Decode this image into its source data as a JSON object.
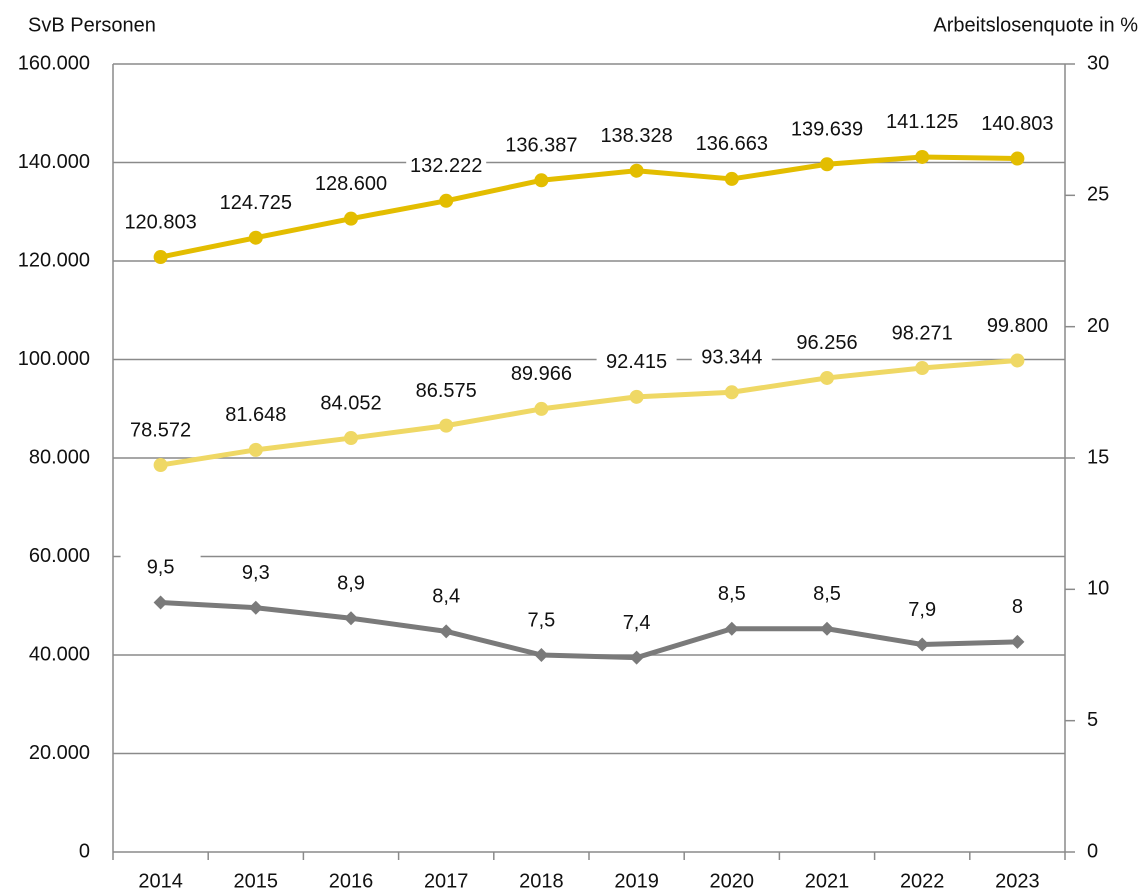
{
  "chart_data": {
    "type": "line",
    "y_label": "SvB Personen",
    "y2_label": "Arbeitslosenquote in %",
    "categories": [
      "2014",
      "2015",
      "2016",
      "2017",
      "2018",
      "2019",
      "2020",
      "2021",
      "2022",
      "2023"
    ],
    "series": [
      {
        "color": "#e3bd00",
        "marker": "circle",
        "values": [
          120803,
          124725,
          128600,
          132222,
          136387,
          138328,
          136663,
          139639,
          141125,
          140803
        ],
        "value_labels": [
          "120.803",
          "124.725",
          "128.600",
          "132.222",
          "136.387",
          "138.328",
          "136.663",
          "139.639",
          "141.125",
          "140.803"
        ]
      },
      {
        "color": "#efd865",
        "marker": "circle",
        "values": [
          78572,
          81648,
          84052,
          86575,
          89966,
          92415,
          93344,
          96256,
          98271,
          99800
        ],
        "value_labels": [
          "78.572",
          "81.648",
          "84.052",
          "86.575",
          "89.966",
          "92.415",
          "93.344",
          "96.256",
          "98.271",
          "99.800"
        ]
      },
      {
        "color": "#7a7a7a",
        "marker": "diamond",
        "axis": "y2",
        "values": [
          9.5,
          9.3,
          8.9,
          8.4,
          7.5,
          7.4,
          8.5,
          8.5,
          7.9,
          8
        ],
        "value_labels": [
          "9,5",
          "9,3",
          "8,9",
          "8,4",
          "7,5",
          "7,4",
          "8,5",
          "8,5",
          "7,9",
          "8"
        ]
      }
    ],
    "ylim": [
      0,
      160000
    ],
    "yticks": [
      0,
      {
        "value": 20000,
        "label": "20.000"
      },
      {
        "value": 40000,
        "label": "40.000"
      },
      {
        "value": 60000,
        "label": "60.000"
      },
      {
        "value": 80000,
        "label": "80.000"
      },
      {
        "value": 100000,
        "label": "100.000"
      },
      {
        "value": 120000,
        "label": "120.000"
      },
      {
        "value": 140000,
        "label": "140.000"
      },
      {
        "value": 160000,
        "label": "160.000"
      }
    ],
    "y2lim": [
      0,
      30
    ],
    "y2ticks": [
      0,
      5,
      10,
      15,
      20,
      25,
      30
    ],
    "grid": true
  }
}
